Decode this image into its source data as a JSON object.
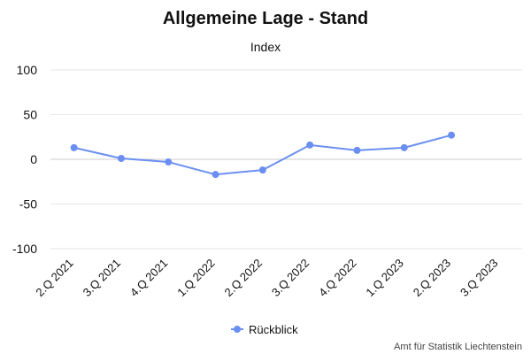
{
  "chart_data": {
    "type": "line",
    "title": "Allgemeine Lage - Stand",
    "subtitle": "Index",
    "xlabel": "",
    "ylabel": "",
    "categories": [
      "2.Q 2021",
      "3.Q 2021",
      "4.Q 2021",
      "1.Q 2022",
      "2.Q 2022",
      "3.Q 2022",
      "4.Q 2022",
      "1.Q 2023",
      "2.Q 2023",
      "3.Q 2023"
    ],
    "series": [
      {
        "name": "Rückblick",
        "color": "#6b8ff0",
        "values": [
          13,
          1,
          -3,
          -17,
          -12,
          16,
          10,
          13,
          27,
          null
        ]
      }
    ],
    "ylim": [
      -100,
      100
    ],
    "yticks": [
      100,
      50,
      0,
      -50,
      -100
    ],
    "ytick_labels": [
      "100",
      "50",
      "0",
      "-50",
      "-100"
    ],
    "grid": true,
    "legend_position": "bottom-center"
  },
  "credit": "Amt für Statistik Liechtenstein"
}
